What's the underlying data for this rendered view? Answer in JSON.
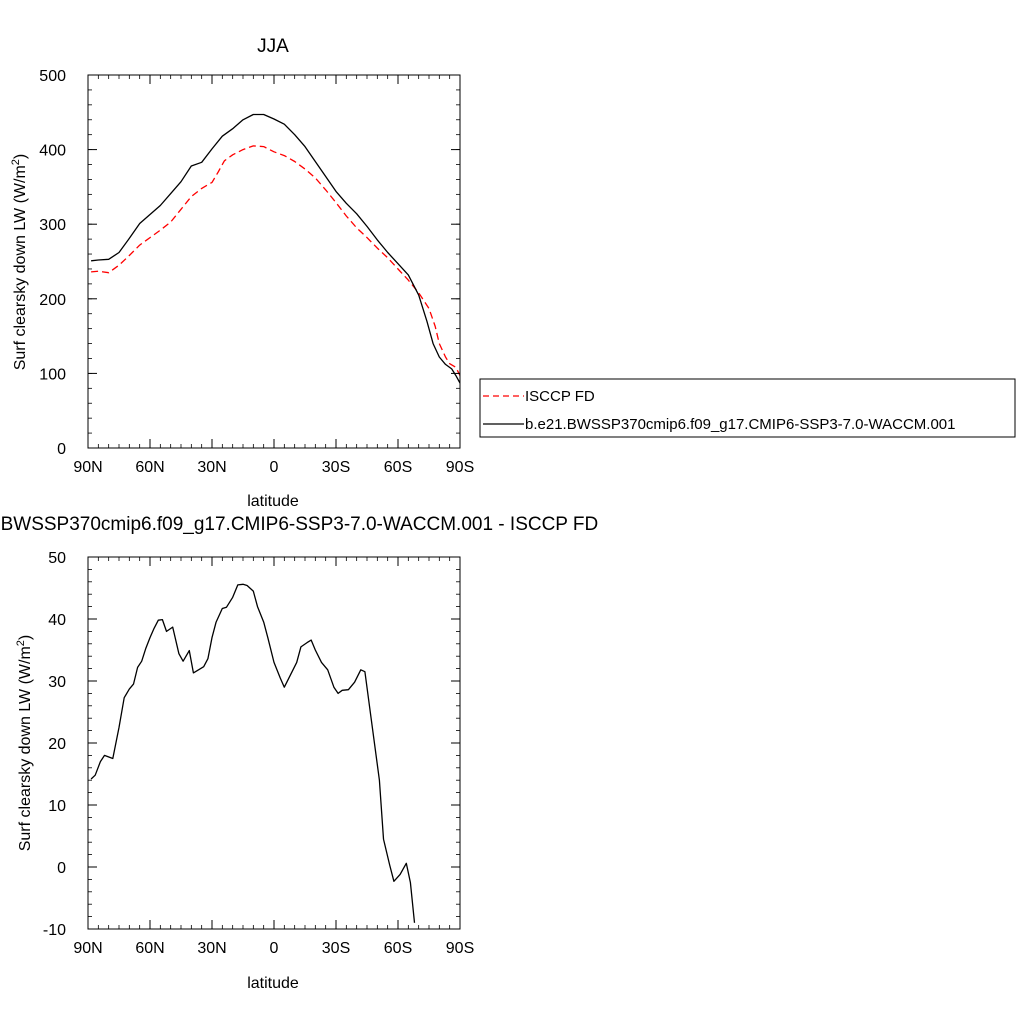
{
  "chart_data": [
    {
      "type": "line",
      "title": "JJA",
      "xlabel": "latitude",
      "ylabel": "Surf clearsky down LW (W/m",
      "ylabel_sup": "2",
      "ylabel_close": ")",
      "xlim": [
        90,
        -90
      ],
      "ylim": [
        0,
        500
      ],
      "xticks": [
        {
          "value": 90,
          "label": "90N"
        },
        {
          "value": 60,
          "label": "60N"
        },
        {
          "value": 30,
          "label": "30N"
        },
        {
          "value": 0,
          "label": "0"
        },
        {
          "value": -30,
          "label": "30S"
        },
        {
          "value": -60,
          "label": "60S"
        },
        {
          "value": -90,
          "label": "90S"
        }
      ],
      "yticks": [
        {
          "value": 0,
          "label": "0"
        },
        {
          "value": 100,
          "label": "100"
        },
        {
          "value": 200,
          "label": "200"
        },
        {
          "value": 300,
          "label": "300"
        },
        {
          "value": 400,
          "label": "400"
        },
        {
          "value": 500,
          "label": "500"
        }
      ],
      "legend": "right",
      "series": [
        {
          "name": "ISCCP FD",
          "color": "#ff0000",
          "dash": "dashed",
          "points": [
            [
              88.5,
              236
            ],
            [
              85,
              237
            ],
            [
              80,
              235
            ],
            [
              75,
              245
            ],
            [
              70,
              258
            ],
            [
              65,
              272
            ],
            [
              60,
              282
            ],
            [
              55,
              292
            ],
            [
              50,
              303
            ],
            [
              45,
              320
            ],
            [
              40,
              337
            ],
            [
              35,
              348
            ],
            [
              30,
              356
            ],
            [
              27,
              370
            ],
            [
              24,
              385
            ],
            [
              20,
              393
            ],
            [
              15,
              400
            ],
            [
              10,
              405
            ],
            [
              5,
              404
            ],
            [
              0,
              397
            ],
            [
              -5,
              392
            ],
            [
              -10,
              384
            ],
            [
              -15,
              374
            ],
            [
              -20,
              362
            ],
            [
              -25,
              346
            ],
            [
              -30,
              329
            ],
            [
              -35,
              311
            ],
            [
              -40,
              295
            ],
            [
              -45,
              282
            ],
            [
              -50,
              268
            ],
            [
              -55,
              255
            ],
            [
              -60,
              240
            ],
            [
              -65,
              225
            ],
            [
              -70,
              208
            ],
            [
              -75,
              187
            ],
            [
              -78,
              163
            ],
            [
              -80,
              140
            ],
            [
              -83,
              122
            ],
            [
              -85,
              113
            ],
            [
              -88,
              108
            ],
            [
              -90,
              97
            ]
          ]
        },
        {
          "name": "b.e21.BWSSP370cmip6.f09_g17.CMIP6-SSP3-7.0-WACCM.001",
          "color": "#000000",
          "dash": "solid",
          "points": [
            [
              88.5,
              251
            ],
            [
              85,
              252
            ],
            [
              80,
              253
            ],
            [
              75,
              262
            ],
            [
              70,
              281
            ],
            [
              65,
              301
            ],
            [
              60,
              313
            ],
            [
              55,
              325
            ],
            [
              50,
              341
            ],
            [
              45,
              357
            ],
            [
              40,
              378
            ],
            [
              35,
              383
            ],
            [
              30,
              401
            ],
            [
              25,
              418
            ],
            [
              20,
              428
            ],
            [
              15,
              440
            ],
            [
              10,
              447
            ],
            [
              5,
              447
            ],
            [
              0,
              441
            ],
            [
              -5,
              434
            ],
            [
              -10,
              420
            ],
            [
              -15,
              404
            ],
            [
              -20,
              384
            ],
            [
              -25,
              364
            ],
            [
              -30,
              344
            ],
            [
              -35,
              328
            ],
            [
              -40,
              314
            ],
            [
              -45,
              297
            ],
            [
              -50,
              279
            ],
            [
              -55,
              262
            ],
            [
              -60,
              247
            ],
            [
              -65,
              232
            ],
            [
              -70,
              205
            ],
            [
              -74,
              170
            ],
            [
              -77,
              140
            ],
            [
              -80,
              122
            ],
            [
              -83,
              112
            ],
            [
              -86,
              106
            ],
            [
              -88,
              97
            ],
            [
              -90,
              87
            ]
          ]
        }
      ]
    },
    {
      "type": "line",
      "title": "b.e21.BWSSP370cmip6.f09_g17.CMIP6-SSP3-7.0-WACCM.001 - ISCCP FD",
      "xlabel": "latitude",
      "ylabel": "Surf clearsky down LW (W/m",
      "ylabel_sup": "2",
      "ylabel_close": ")",
      "xlim": [
        90,
        -90
      ],
      "ylim": [
        -10,
        50
      ],
      "xticks": [
        {
          "value": 90,
          "label": "90N"
        },
        {
          "value": 60,
          "label": "60N"
        },
        {
          "value": 30,
          "label": "30N"
        },
        {
          "value": 0,
          "label": "0"
        },
        {
          "value": -30,
          "label": "30S"
        },
        {
          "value": -60,
          "label": "60S"
        },
        {
          "value": -90,
          "label": "90S"
        }
      ],
      "yticks": [
        {
          "value": -10,
          "label": "-10"
        },
        {
          "value": 0,
          "label": "0"
        },
        {
          "value": 10,
          "label": "10"
        },
        {
          "value": 20,
          "label": "20"
        },
        {
          "value": 30,
          "label": "30"
        },
        {
          "value": 40,
          "label": "40"
        },
        {
          "value": 50,
          "label": "50"
        }
      ],
      "series": [
        {
          "color": "#000000",
          "dash": "solid",
          "points": [
            [
              88.5,
              14.2
            ],
            [
              86.5,
              14.8
            ],
            [
              84,
              17
            ],
            [
              82,
              18
            ],
            [
              78,
              17.5
            ],
            [
              75,
              22.5
            ],
            [
              72.5,
              27.3
            ],
            [
              70,
              28.7
            ],
            [
              68,
              29.5
            ],
            [
              66,
              32.2
            ],
            [
              64,
              33.2
            ],
            [
              62,
              35.3
            ],
            [
              60,
              37
            ],
            [
              58,
              38.5
            ],
            [
              56,
              39.8
            ],
            [
              54,
              39.9
            ],
            [
              52,
              38
            ],
            [
              49,
              38.7
            ],
            [
              46,
              34.4
            ],
            [
              44,
              33.2
            ],
            [
              41,
              34.9
            ],
            [
              39,
              31.3
            ],
            [
              36,
              31.9
            ],
            [
              34,
              32.3
            ],
            [
              32,
              33.6
            ],
            [
              30,
              37
            ],
            [
              28,
              39.5
            ],
            [
              25,
              41.7
            ],
            [
              23,
              41.9
            ],
            [
              20,
              43.5
            ],
            [
              17.5,
              45.5
            ],
            [
              15,
              45.6
            ],
            [
              13,
              45.4
            ],
            [
              10,
              44.5
            ],
            [
              8,
              42
            ],
            [
              5,
              39.5
            ],
            [
              3,
              37
            ],
            [
              0,
              33
            ],
            [
              -3,
              30.5
            ],
            [
              -5,
              29
            ],
            [
              -8,
              31
            ],
            [
              -11,
              33
            ],
            [
              -13,
              35.5
            ],
            [
              -16,
              36.2
            ],
            [
              -18,
              36.6
            ],
            [
              -20,
              35
            ],
            [
              -23,
              33
            ],
            [
              -26,
              31.8
            ],
            [
              -29,
              29
            ],
            [
              -31,
              28
            ],
            [
              -33,
              28.5
            ],
            [
              -36,
              28.6
            ],
            [
              -39,
              29.8
            ],
            [
              -42,
              31.8
            ],
            [
              -44,
              31.5
            ],
            [
              -47,
              24
            ],
            [
              -51,
              14
            ],
            [
              -53,
              4.5
            ],
            [
              -56,
              0.3
            ],
            [
              -58,
              -2.3
            ],
            [
              -61,
              -1.2
            ],
            [
              -64,
              0.6
            ],
            [
              -66,
              -2.5
            ],
            [
              -68,
              -9
            ]
          ]
        }
      ]
    }
  ]
}
